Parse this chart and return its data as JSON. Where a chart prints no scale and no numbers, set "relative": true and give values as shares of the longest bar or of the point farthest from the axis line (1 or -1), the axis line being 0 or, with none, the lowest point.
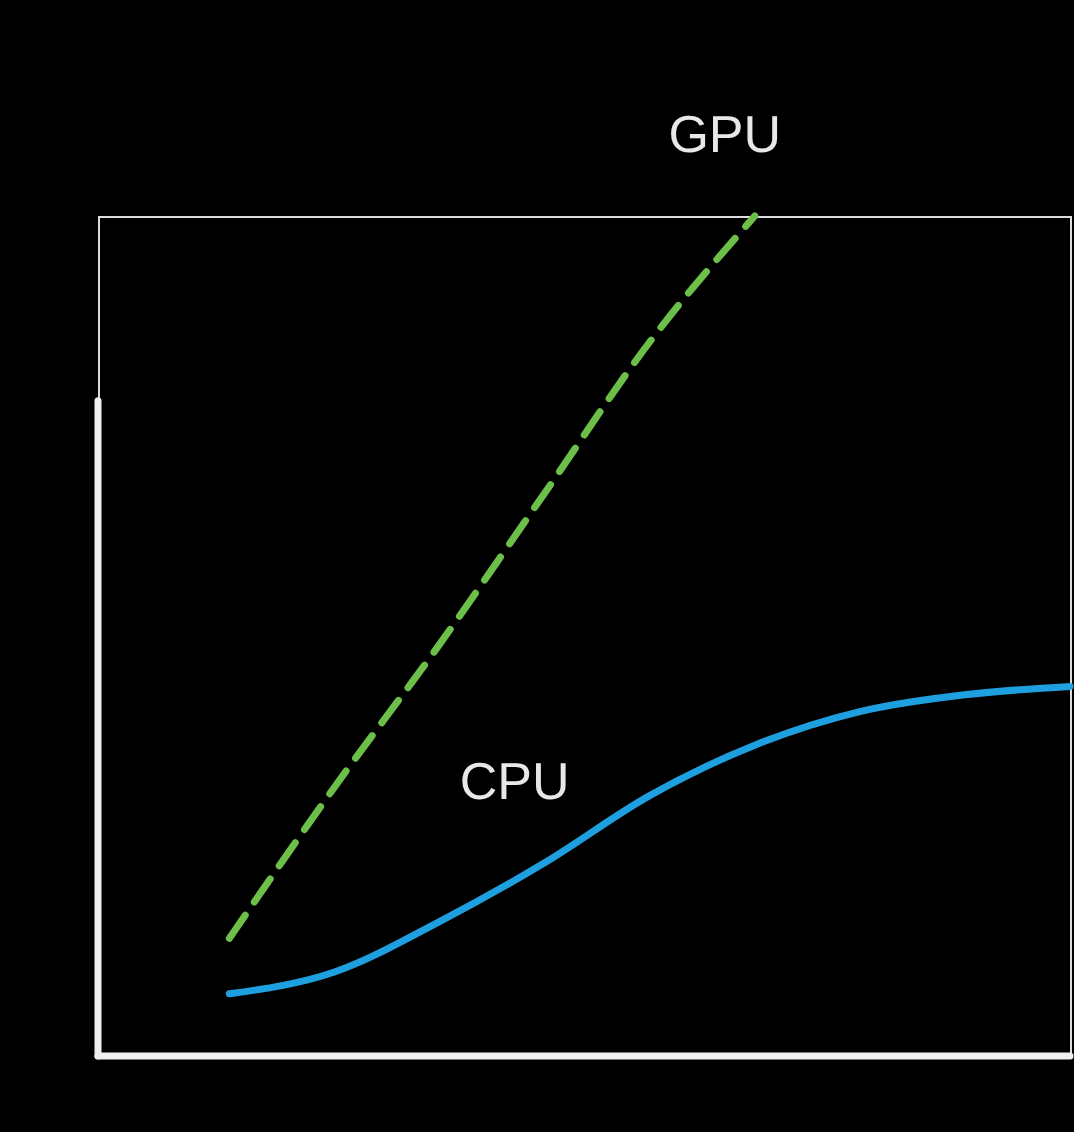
{
  "chart_data": {
    "type": "line",
    "relative": true,
    "tick_labels": false,
    "grid": false,
    "legend": false,
    "categories": [
      null,
      null,
      null,
      null,
      null,
      null,
      null,
      null,
      null
    ],
    "series": [
      {
        "name": "GPU",
        "color": "#6cc04a",
        "line_style": "dashed",
        "values": [
          0.14,
          0.32,
          0.49,
          0.67,
          0.85,
          1.0,
          null,
          null,
          null
        ]
      },
      {
        "name": "CPU",
        "color": "#1ea0e0",
        "line_style": "solid",
        "values": [
          0.074,
          0.1,
          0.16,
          0.23,
          0.31,
          0.37,
          0.41,
          0.43,
          0.44
        ]
      }
    ]
  }
}
